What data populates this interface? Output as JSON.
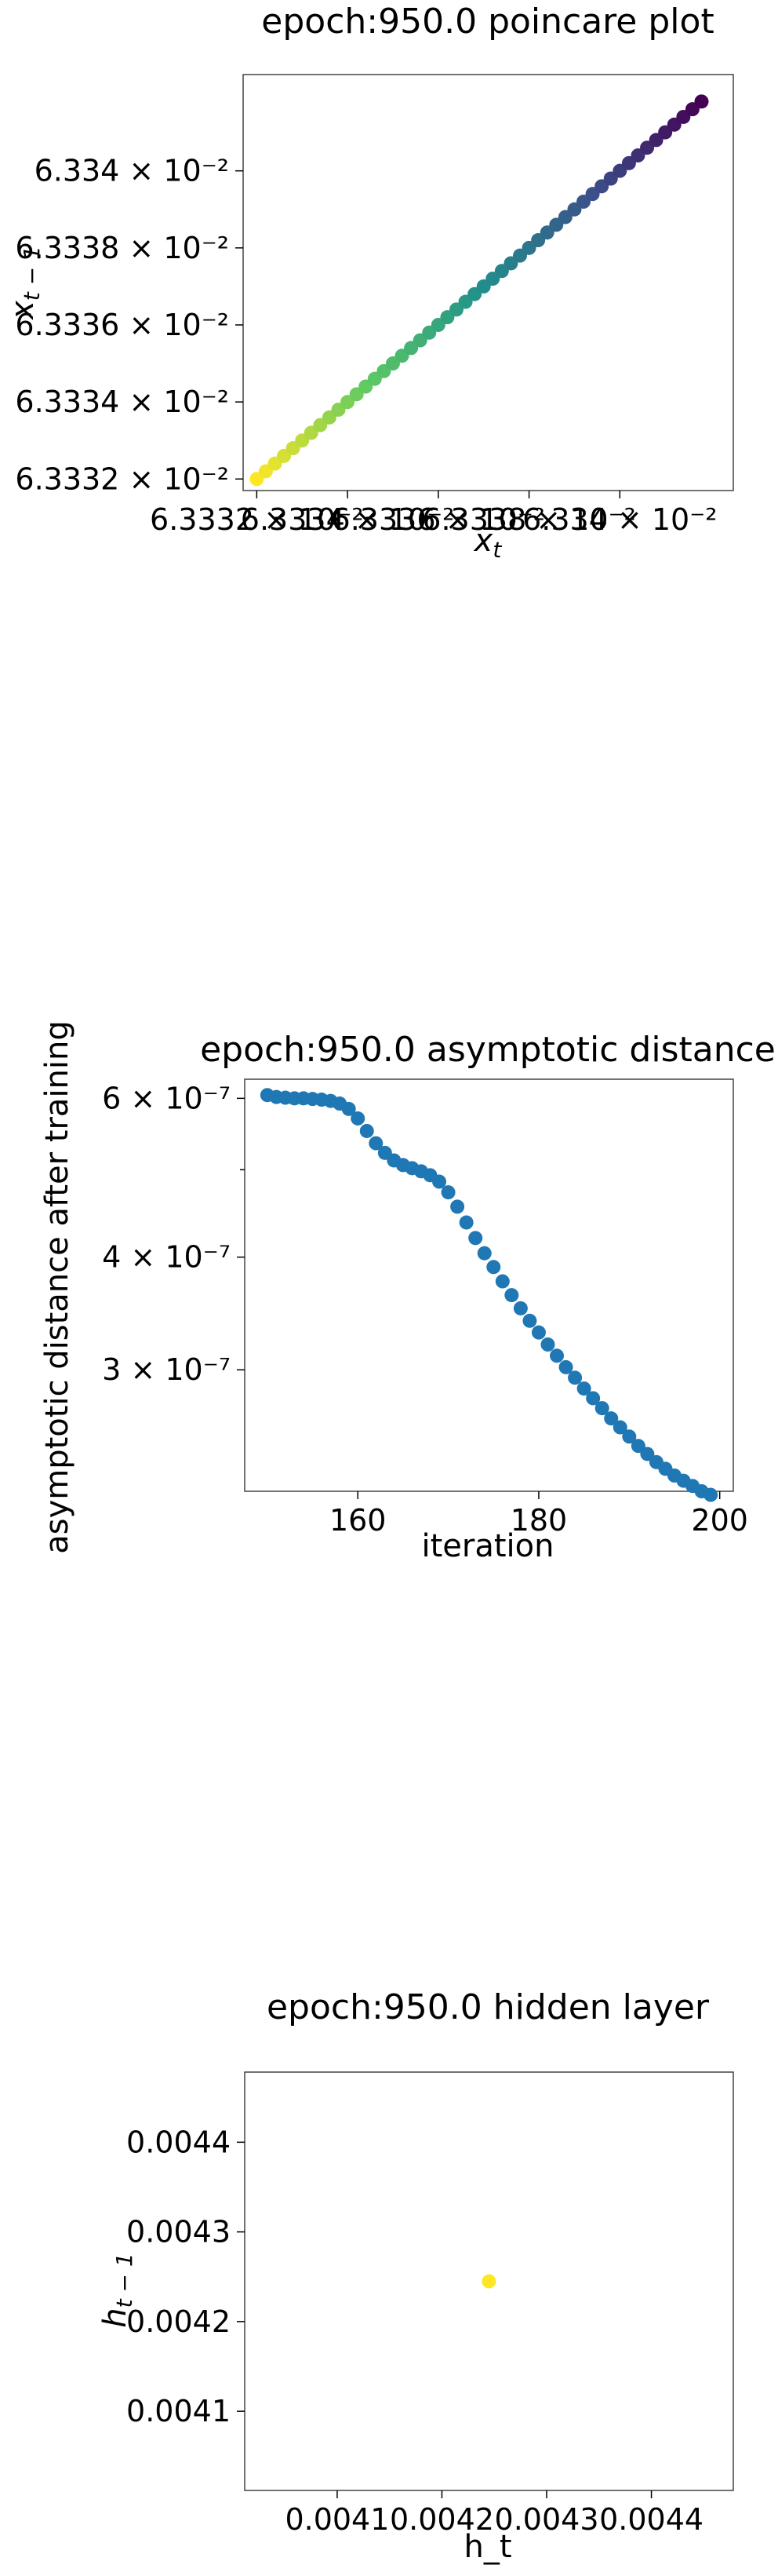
{
  "chart_data": [
    {
      "type": "scatter",
      "title": "epoch:950.0 poincare plot",
      "xlabel": "x_t",
      "ylabel": "x_{t-1}",
      "xlim": [
        0.0633317,
        0.0633425
      ],
      "ylim": [
        0.0633317,
        0.0633425
      ],
      "x_ticks": [
        {
          "value": 0.063332,
          "label": "6.3332 × 10⁻²"
        },
        {
          "value": 0.063334,
          "label": "6.3334 × 10⁻²"
        },
        {
          "value": 0.063336,
          "label": "6.3336 × 10⁻²"
        },
        {
          "value": 0.063338,
          "label": "6.3338 × 10⁻²"
        },
        {
          "value": 0.06334,
          "label": "6.334 × 10⁻²"
        }
      ],
      "y_ticks": [
        {
          "value": 0.063332,
          "label": "6.3332 × 10⁻²"
        },
        {
          "value": 0.063334,
          "label": "6.3334 × 10⁻²"
        },
        {
          "value": 0.063336,
          "label": "6.3336 × 10⁻²"
        },
        {
          "value": 0.063338,
          "label": "6.3338 × 10⁻²"
        },
        {
          "value": 0.06334,
          "label": "6.334 × 10⁻²"
        }
      ],
      "x_start": 0.063332,
      "x_end": 0.0633418,
      "points_count": 50,
      "colormap": [
        "#fde725",
        "#5ec962",
        "#21918c",
        "#3b528b",
        "#440154"
      ]
    },
    {
      "type": "scatter",
      "title": "epoch:950.0 asymptotic distance",
      "xlabel": "iteration",
      "ylabel": "asymptotic distance after training",
      "yscale": "log",
      "xlim": [
        147.5,
        201.5
      ],
      "ylim": [
        2.2e-07,
        6.3e-07
      ],
      "x_ticks": [
        {
          "value": 160,
          "label": "160"
        },
        {
          "value": 180,
          "label": "180"
        },
        {
          "value": 200,
          "label": "200"
        }
      ],
      "y_ticks": [
        {
          "value": 6e-07,
          "label": "6 × 10⁻⁷"
        },
        {
          "value": 4e-07,
          "label": "4 × 10⁻⁷"
        },
        {
          "value": 3e-07,
          "label": "3 × 10⁻⁷"
        }
      ],
      "x": [
        150,
        151,
        152,
        153,
        154,
        155,
        156,
        157,
        158,
        159,
        160,
        161,
        162,
        163,
        164,
        165,
        166,
        167,
        168,
        169,
        170,
        171,
        172,
        173,
        174,
        175,
        176,
        177,
        178,
        179,
        180,
        181,
        182,
        183,
        184,
        185,
        186,
        187,
        188,
        189,
        190,
        191,
        192,
        193,
        194,
        195,
        196,
        197,
        198,
        199
      ],
      "values": [
        6.05e-07,
        6.02e-07,
        6.01e-07,
        6e-07,
        6e-07,
        5.99e-07,
        5.98e-07,
        5.96e-07,
        5.92e-07,
        5.84e-07,
        5.7e-07,
        5.52e-07,
        5.35e-07,
        5.22e-07,
        5.12e-07,
        5.06e-07,
        5.02e-07,
        4.98e-07,
        4.93e-07,
        4.85e-07,
        4.72e-07,
        4.55e-07,
        4.37e-07,
        4.2e-07,
        4.04e-07,
        3.9e-07,
        3.76e-07,
        3.63e-07,
        3.51e-07,
        3.4e-07,
        3.3e-07,
        3.2e-07,
        3.11e-07,
        3.02e-07,
        2.94e-07,
        2.86e-07,
        2.79e-07,
        2.72e-07,
        2.65e-07,
        2.59e-07,
        2.53e-07,
        2.47e-07,
        2.42e-07,
        2.37e-07,
        2.33e-07,
        2.29e-07,
        2.26e-07,
        2.23e-07,
        2.2e-07,
        2.18e-07
      ],
      "color": "#1f77b4"
    },
    {
      "type": "scatter",
      "title": "epoch:950.0 hidden layer",
      "xlabel": "h_t",
      "ylabel": "h_{t-1}",
      "xlim": [
        0.0040117,
        0.0044782
      ],
      "ylim": [
        0.0040117,
        0.0044782
      ],
      "x_ticks": [
        {
          "value": 0.0041,
          "label": "0.0041"
        },
        {
          "value": 0.0042,
          "label": "0.0042"
        },
        {
          "value": 0.0043,
          "label": "0.0043"
        },
        {
          "value": 0.0044,
          "label": "0.0044"
        }
      ],
      "y_ticks": [
        {
          "value": 0.0044,
          "label": "0.0044"
        },
        {
          "value": 0.0043,
          "label": "0.0043"
        },
        {
          "value": 0.0042,
          "label": "0.0042"
        },
        {
          "value": 0.0041,
          "label": "0.0041"
        }
      ],
      "x": [
        0.0042449
      ],
      "values": [
        0.0042449
      ],
      "color": "#fde725"
    }
  ]
}
